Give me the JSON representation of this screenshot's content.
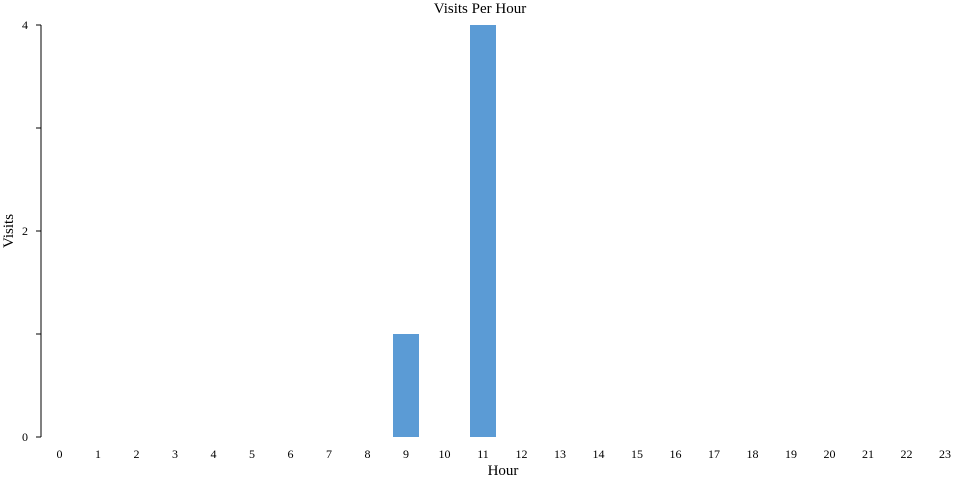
{
  "chart_data": {
    "type": "bar",
    "title": "Visits Per Hour",
    "xlabel": "Hour",
    "ylabel": "Visits",
    "categories": [
      "0",
      "1",
      "2",
      "3",
      "4",
      "5",
      "6",
      "7",
      "8",
      "9",
      "10",
      "11",
      "12",
      "13",
      "14",
      "15",
      "16",
      "17",
      "18",
      "19",
      "20",
      "21",
      "22",
      "23"
    ],
    "values": [
      0,
      0,
      0,
      0,
      0,
      0,
      0,
      0,
      0,
      1,
      0,
      4,
      0,
      0,
      0,
      0,
      0,
      0,
      0,
      0,
      0,
      0,
      0,
      0
    ],
    "ylim": [
      0,
      4
    ],
    "y_ticks": [
      0,
      1,
      2,
      3,
      4
    ],
    "y_tick_labels": [
      "0",
      "",
      "2",
      "",
      "4"
    ],
    "grid": false,
    "bar_color": "#5b9bd5"
  }
}
